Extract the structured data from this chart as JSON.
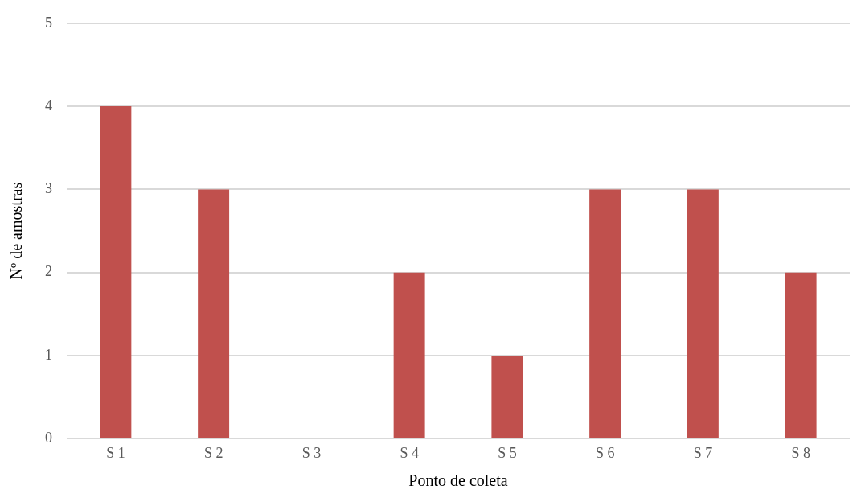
{
  "chart_data": {
    "type": "bar",
    "xlabel": "Ponto de coleta",
    "ylabel": "Nº de amostras",
    "categories": [
      "S 1",
      "S 2",
      "S 3",
      "S 4",
      "S 5",
      "S 6",
      "S 7",
      "S 8"
    ],
    "values": [
      4,
      3,
      0,
      2,
      1,
      3,
      3,
      2
    ],
    "color": "#c0504d",
    "ylim": [
      0,
      5
    ],
    "yticks": [
      0,
      1,
      2,
      3,
      4,
      5
    ],
    "grid": "y"
  }
}
